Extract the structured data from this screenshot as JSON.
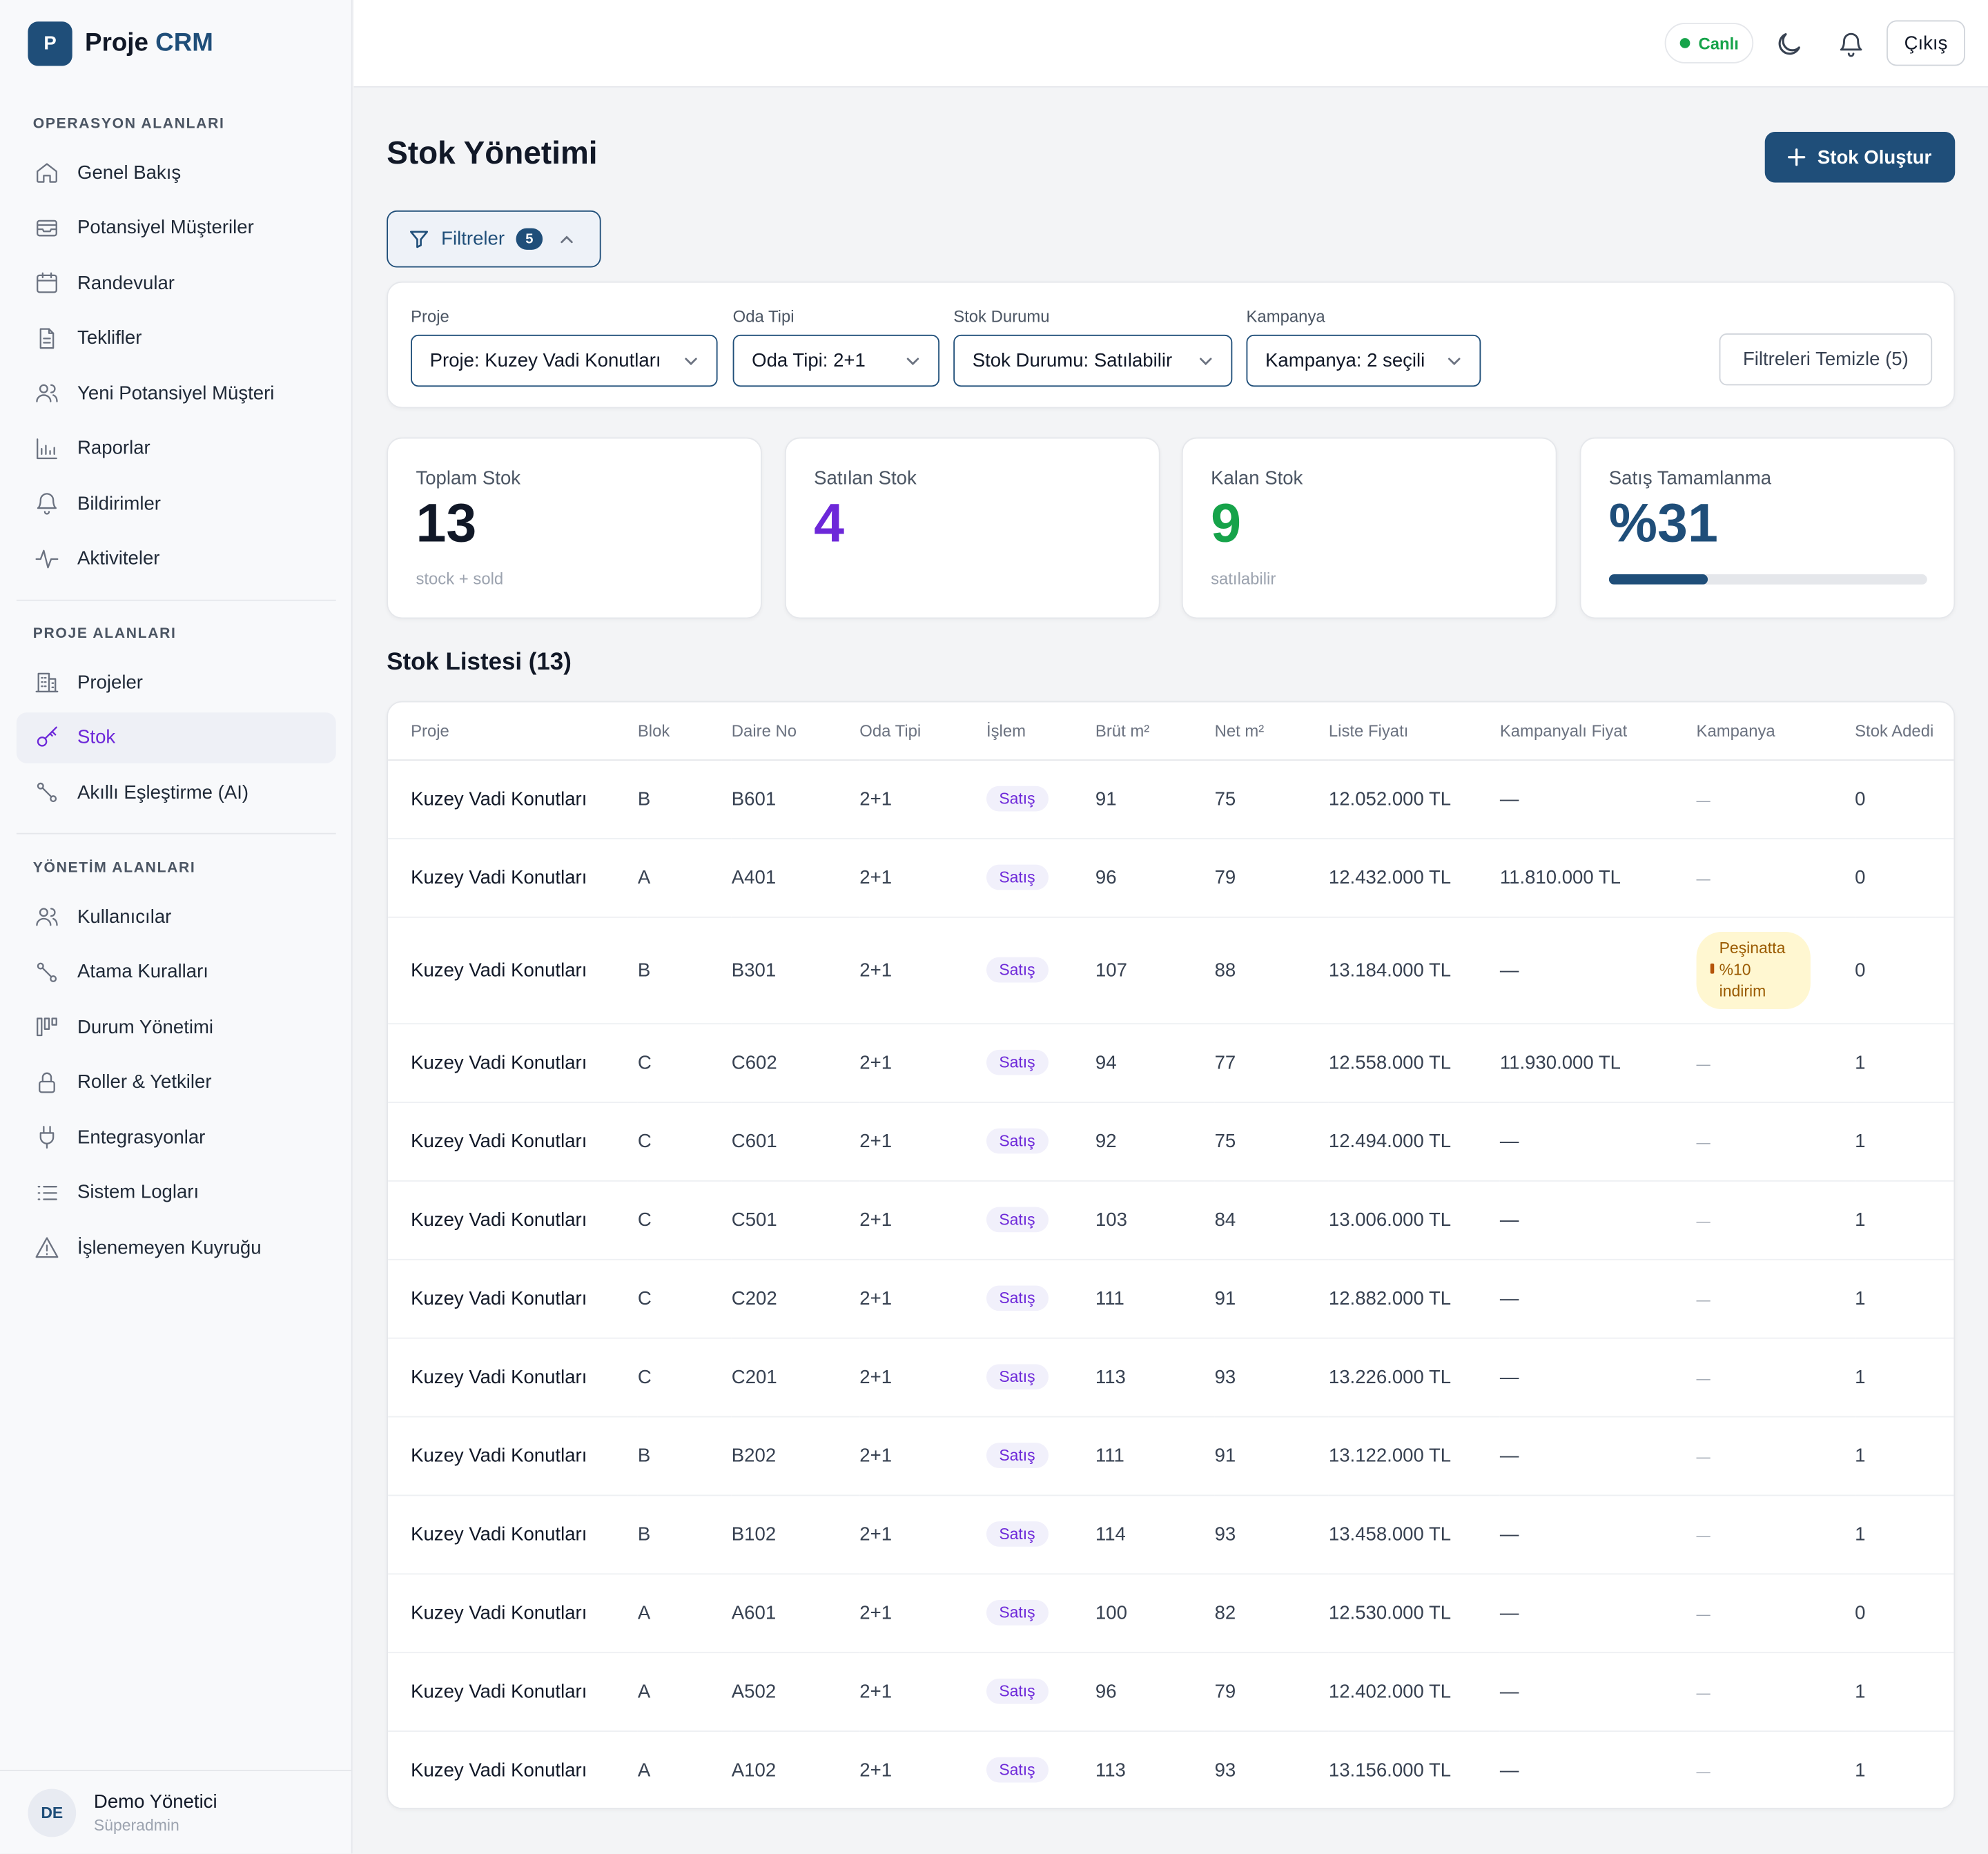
{
  "brand": {
    "logo_letter": "P",
    "name_part1": "Proje",
    "name_part2": "CRM"
  },
  "sidebar": {
    "sections": [
      {
        "title": "OPERASYON ALANLARI",
        "items": [
          {
            "label": "Genel Bakış",
            "icon": "home-icon"
          },
          {
            "label": "Potansiyel Müşteriler",
            "icon": "inbox-icon"
          },
          {
            "label": "Randevular",
            "icon": "calendar-icon"
          },
          {
            "label": "Teklifler",
            "icon": "document-icon"
          },
          {
            "label": "Yeni Potansiyel Müşteri",
            "icon": "users-icon"
          },
          {
            "label": "Raporlar",
            "icon": "bar-chart-icon"
          },
          {
            "label": "Bildirimler",
            "icon": "bell-icon"
          },
          {
            "label": "Aktiviteler",
            "icon": "activity-icon"
          }
        ]
      },
      {
        "title": "PROJE ALANLARI",
        "items": [
          {
            "label": "Projeler",
            "icon": "building-icon"
          },
          {
            "label": "Stok",
            "icon": "key-icon",
            "active": true
          },
          {
            "label": "Akıllı Eşleştirme (AI)",
            "icon": "route-icon"
          }
        ]
      },
      {
        "title": "YÖNETİM ALANLARI",
        "items": [
          {
            "label": "Kullanıcılar",
            "icon": "users-icon"
          },
          {
            "label": "Atama Kuralları",
            "icon": "route-icon"
          },
          {
            "label": "Durum Yönetimi",
            "icon": "kanban-icon"
          },
          {
            "label": "Roller & Yetkiler",
            "icon": "lock-icon"
          },
          {
            "label": "Entegrasyonlar",
            "icon": "plug-icon"
          },
          {
            "label": "Sistem Logları",
            "icon": "list-icon"
          },
          {
            "label": "İşlenemeyen Kuyruğu",
            "icon": "warning-icon"
          }
        ]
      }
    ],
    "user": {
      "initials": "DE",
      "name": "Demo Yönetici",
      "role": "Süperadmin"
    }
  },
  "topbar": {
    "live_label": "Canlı",
    "logout_label": "Çıkış"
  },
  "page": {
    "title": "Stok Yönetimi",
    "create_label": "Stok Oluştur",
    "filters_label": "Filtreler",
    "filters_count": "5"
  },
  "filters": {
    "project": {
      "label": "Proje",
      "value": "Proje: Kuzey Vadi Konutları"
    },
    "room": {
      "label": "Oda Tipi",
      "value": "Oda Tipi: 2+1"
    },
    "status": {
      "label": "Stok Durumu",
      "value": "Stok Durumu: Satılabilir"
    },
    "campaign": {
      "label": "Kampanya",
      "value": "Kampanya: 2 seçili"
    },
    "clear_label": "Filtreleri Temizle (5)"
  },
  "stats": {
    "total": {
      "label": "Toplam Stok",
      "value": "13",
      "sub": "stock + sold"
    },
    "sold": {
      "label": "Satılan Stok",
      "value": "4"
    },
    "remaining": {
      "label": "Kalan Stok",
      "value": "9",
      "sub": "satılabilir"
    },
    "completion": {
      "label": "Satış Tamamlanma",
      "value": "%31",
      "progress": 0.31
    }
  },
  "colors": {
    "primary": "#1f4e79",
    "sold": "#6d28d9",
    "remaining": "#16a34a"
  },
  "table": {
    "title": "Stok Listesi (13)",
    "headers": [
      "Proje",
      "Blok",
      "Daire No",
      "Oda Tipi",
      "İşlem",
      "Brüt m²",
      "Net m²",
      "Liste Fiyatı",
      "Kampanyalı Fiyat",
      "Kampanya",
      "Stok Adedi"
    ],
    "rows": [
      {
        "project": "Kuzey Vadi Konutları",
        "block": "B",
        "unit": "B601",
        "room": "2+1",
        "op": "Satış",
        "gross": "91",
        "net": "75",
        "list_price": "12.052.000 TL",
        "camp_price": "—",
        "campaign": "—",
        "stock": "0"
      },
      {
        "project": "Kuzey Vadi Konutları",
        "block": "A",
        "unit": "A401",
        "room": "2+1",
        "op": "Satış",
        "gross": "96",
        "net": "79",
        "list_price": "12.432.000 TL",
        "camp_price": "11.810.000 TL",
        "campaign": "—",
        "stock": "0"
      },
      {
        "project": "Kuzey Vadi Konutları",
        "block": "B",
        "unit": "B301",
        "room": "2+1",
        "op": "Satış",
        "gross": "107",
        "net": "88",
        "list_price": "13.184.000 TL",
        "camp_price": "—",
        "campaign": "Peşinatta %10 indirim",
        "stock": "0"
      },
      {
        "project": "Kuzey Vadi Konutları",
        "block": "C",
        "unit": "C602",
        "room": "2+1",
        "op": "Satış",
        "gross": "94",
        "net": "77",
        "list_price": "12.558.000 TL",
        "camp_price": "11.930.000 TL",
        "campaign": "—",
        "stock": "1"
      },
      {
        "project": "Kuzey Vadi Konutları",
        "block": "C",
        "unit": "C601",
        "room": "2+1",
        "op": "Satış",
        "gross": "92",
        "net": "75",
        "list_price": "12.494.000 TL",
        "camp_price": "—",
        "campaign": "—",
        "stock": "1"
      },
      {
        "project": "Kuzey Vadi Konutları",
        "block": "C",
        "unit": "C501",
        "room": "2+1",
        "op": "Satış",
        "gross": "103",
        "net": "84",
        "list_price": "13.006.000 TL",
        "camp_price": "—",
        "campaign": "—",
        "stock": "1"
      },
      {
        "project": "Kuzey Vadi Konutları",
        "block": "C",
        "unit": "C202",
        "room": "2+1",
        "op": "Satış",
        "gross": "111",
        "net": "91",
        "list_price": "12.882.000 TL",
        "camp_price": "—",
        "campaign": "—",
        "stock": "1"
      },
      {
        "project": "Kuzey Vadi Konutları",
        "block": "C",
        "unit": "C201",
        "room": "2+1",
        "op": "Satış",
        "gross": "113",
        "net": "93",
        "list_price": "13.226.000 TL",
        "camp_price": "—",
        "campaign": "—",
        "stock": "1"
      },
      {
        "project": "Kuzey Vadi Konutları",
        "block": "B",
        "unit": "B202",
        "room": "2+1",
        "op": "Satış",
        "gross": "111",
        "net": "91",
        "list_price": "13.122.000 TL",
        "camp_price": "—",
        "campaign": "—",
        "stock": "1"
      },
      {
        "project": "Kuzey Vadi Konutları",
        "block": "B",
        "unit": "B102",
        "room": "2+1",
        "op": "Satış",
        "gross": "114",
        "net": "93",
        "list_price": "13.458.000 TL",
        "camp_price": "—",
        "campaign": "—",
        "stock": "1"
      },
      {
        "project": "Kuzey Vadi Konutları",
        "block": "A",
        "unit": "A601",
        "room": "2+1",
        "op": "Satış",
        "gross": "100",
        "net": "82",
        "list_price": "12.530.000 TL",
        "camp_price": "—",
        "campaign": "—",
        "stock": "0"
      },
      {
        "project": "Kuzey Vadi Konutları",
        "block": "A",
        "unit": "A502",
        "room": "2+1",
        "op": "Satış",
        "gross": "96",
        "net": "79",
        "list_price": "12.402.000 TL",
        "camp_price": "—",
        "campaign": "—",
        "stock": "1"
      },
      {
        "project": "Kuzey Vadi Konutları",
        "block": "A",
        "unit": "A102",
        "room": "2+1",
        "op": "Satış",
        "gross": "113",
        "net": "93",
        "list_price": "13.156.000 TL",
        "camp_price": "—",
        "campaign": "—",
        "stock": "1"
      }
    ]
  }
}
